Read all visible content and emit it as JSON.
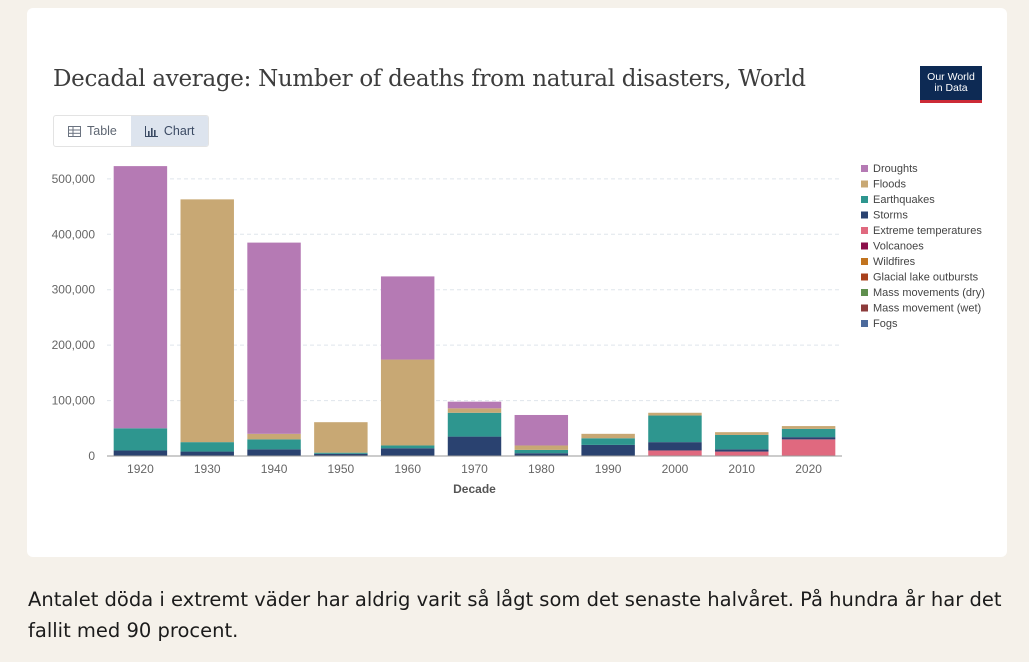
{
  "title": "Decadal average: Number of deaths from natural disasters, World",
  "logo": {
    "line1": "Our World",
    "line2": "in Data",
    "bg": "#0d2a54",
    "accent": "#cc2a36"
  },
  "tabs": [
    {
      "label": "Table",
      "icon": "table-icon",
      "active": false
    },
    {
      "label": "Chart",
      "icon": "chart-icon",
      "active": true
    }
  ],
  "caption": "Antalet döda i extremt väder har aldrig varit så lågt som det senaste halvåret. På hundra år har det fallit med 90 procent.",
  "chart_data": {
    "type": "bar",
    "stacked": true,
    "title": "Decadal average: Number of deaths from natural disasters, World",
    "xlabel": "Decade",
    "ylabel": "",
    "ylim": [
      0,
      525000
    ],
    "yticks": [
      0,
      100000,
      200000,
      300000,
      400000,
      500000
    ],
    "ytick_labels": [
      "0",
      "100,000",
      "200,000",
      "300,000",
      "400,000",
      "500,000"
    ],
    "grid": true,
    "legend_position": "right",
    "categories": [
      "1920",
      "1930",
      "1940",
      "1950",
      "1960",
      "1970",
      "1980",
      "1990",
      "2000",
      "2010",
      "2020"
    ],
    "series": [
      {
        "name": "Fogs",
        "color": "#4c6a9c",
        "values": [
          0,
          0,
          0,
          0,
          0,
          0,
          0,
          0,
          0,
          0,
          0
        ]
      },
      {
        "name": "Mass movement (wet)",
        "color": "#8c3b3b",
        "values": [
          0,
          0,
          0,
          0,
          0,
          0,
          0,
          0,
          0,
          0,
          0
        ]
      },
      {
        "name": "Mass movements (dry)",
        "color": "#5f8f4e",
        "values": [
          0,
          0,
          0,
          0,
          0,
          0,
          0,
          0,
          0,
          0,
          0
        ]
      },
      {
        "name": "Glacial lake outbursts",
        "color": "#a8401c",
        "values": [
          0,
          0,
          0,
          0,
          0,
          0,
          0,
          0,
          0,
          0,
          0
        ]
      },
      {
        "name": "Wildfires",
        "color": "#c1731f",
        "values": [
          0,
          0,
          0,
          0,
          0,
          0,
          0,
          0,
          0,
          0,
          0
        ]
      },
      {
        "name": "Volcanoes",
        "color": "#8b0f4a",
        "values": [
          0,
          0,
          0,
          0,
          0,
          0,
          0,
          0,
          0,
          0,
          0
        ]
      },
      {
        "name": "Extreme temperatures",
        "color": "#e0697f",
        "values": [
          0,
          0,
          0,
          0,
          0,
          0,
          0,
          0,
          10000,
          8000,
          30000
        ]
      },
      {
        "name": "Storms",
        "color": "#2a4270",
        "values": [
          10000,
          8000,
          12000,
          4000,
          14000,
          35000,
          5000,
          20000,
          15000,
          4000,
          4000
        ]
      },
      {
        "name": "Earthquakes",
        "color": "#2e968f",
        "values": [
          40000,
          17000,
          18000,
          2000,
          5000,
          43000,
          6000,
          12000,
          48000,
          26000,
          15000
        ]
      },
      {
        "name": "Floods",
        "color": "#c8a874",
        "values": [
          0,
          438000,
          10000,
          55000,
          155000,
          8000,
          8000,
          8000,
          5000,
          5000,
          5000
        ]
      },
      {
        "name": "Droughts",
        "color": "#b57ab4",
        "values": [
          473000,
          0,
          345000,
          0,
          150000,
          12000,
          55000,
          0,
          0,
          0,
          0
        ]
      }
    ]
  }
}
